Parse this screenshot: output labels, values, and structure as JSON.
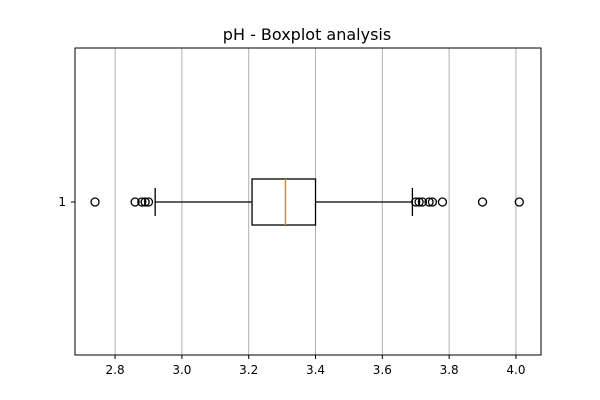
{
  "chart_data": {
    "type": "boxplot",
    "orientation": "horizontal",
    "title": "pH - Boxplot analysis",
    "xlabel": "",
    "ylabel": "",
    "xlim": [
      2.68,
      4.075
    ],
    "x_ticks": [
      "2.8",
      "3.0",
      "3.2",
      "3.4",
      "3.6",
      "3.8",
      "4.0"
    ],
    "grid": "vertical",
    "categories": [
      "1"
    ],
    "boxes": [
      {
        "label": "1",
        "whisker_low": 2.92,
        "q1": 3.21,
        "median": 3.31,
        "q3": 3.4,
        "whisker_high": 3.69,
        "fliers": [
          2.74,
          2.86,
          2.88,
          2.89,
          2.9,
          3.7,
          3.71,
          3.72,
          3.74,
          3.75,
          3.78,
          3.9,
          4.01
        ]
      }
    ],
    "colors": {
      "median": "#ff7f0e",
      "box": "#000000",
      "grid": "#b0b0b0"
    }
  }
}
